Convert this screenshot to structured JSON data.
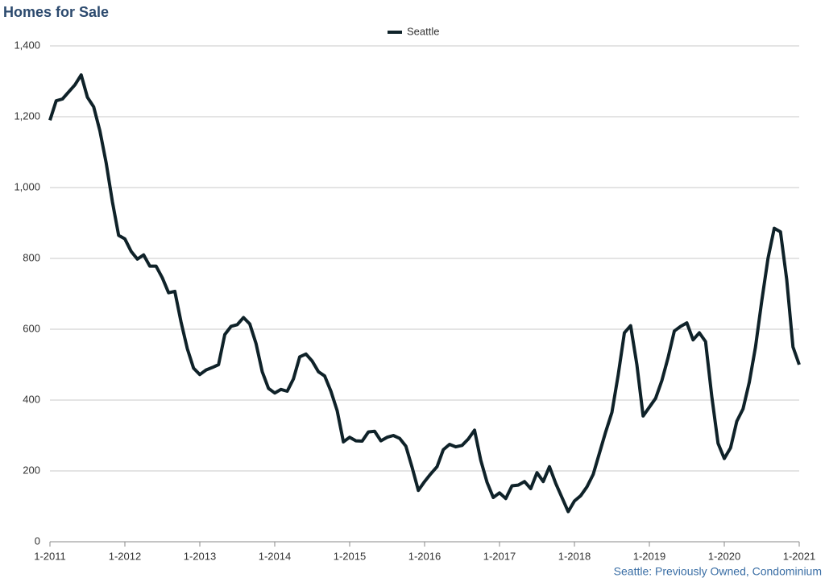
{
  "chart_data": {
    "type": "line",
    "title": "Homes for Sale",
    "footer": "Seattle: Previously Owned, Condominium",
    "categories": [
      "1-2011",
      null,
      null,
      null,
      null,
      null,
      null,
      null,
      null,
      null,
      null,
      null,
      "1-2012",
      null,
      null,
      null,
      null,
      null,
      null,
      null,
      null,
      null,
      null,
      null,
      "1-2013",
      null,
      null,
      null,
      null,
      null,
      null,
      null,
      null,
      null,
      null,
      null,
      "1-2014",
      null,
      null,
      null,
      null,
      null,
      null,
      null,
      null,
      null,
      null,
      null,
      "1-2015",
      null,
      null,
      null,
      null,
      null,
      null,
      null,
      null,
      null,
      null,
      null,
      "1-2016",
      null,
      null,
      null,
      null,
      null,
      null,
      null,
      null,
      null,
      null,
      null,
      "1-2017",
      null,
      null,
      null,
      null,
      null,
      null,
      null,
      null,
      null,
      null,
      null,
      "1-2018",
      null,
      null,
      null,
      null,
      null,
      null,
      null,
      null,
      null,
      null,
      null,
      "1-2019",
      null,
      null,
      null,
      null,
      null,
      null,
      null,
      null,
      null,
      null,
      null,
      "1-2020",
      null,
      null,
      null,
      null,
      null,
      null,
      null,
      null,
      null,
      null,
      null,
      "1-2021"
    ],
    "series": [
      {
        "name": "Seattle",
        "color": "#0f2229",
        "values": [
          1190,
          1245,
          1250,
          1270,
          1290,
          1318,
          1255,
          1228,
          1160,
          1070,
          960,
          865,
          855,
          820,
          798,
          810,
          778,
          778,
          745,
          703,
          707,
          620,
          545,
          490,
          472,
          485,
          492,
          500,
          585,
          608,
          613,
          633,
          615,
          560,
          480,
          433,
          420,
          430,
          425,
          460,
          522,
          530,
          510,
          480,
          468,
          425,
          370,
          282,
          295,
          285,
          284,
          310,
          312,
          285,
          295,
          300,
          292,
          270,
          210,
          145,
          170,
          192,
          212,
          260,
          275,
          268,
          272,
          290,
          315,
          230,
          168,
          125,
          138,
          122,
          158,
          160,
          170,
          150,
          195,
          170,
          212,
          165,
          125,
          85,
          115,
          130,
          155,
          190,
          250,
          310,
          365,
          470,
          590,
          610,
          500,
          355,
          380,
          405,
          455,
          520,
          595,
          608,
          618,
          570,
          590,
          565,
          410,
          278,
          235,
          265,
          340,
          375,
          450,
          550,
          680,
          800,
          885,
          875,
          740,
          550,
          500
        ]
      }
    ],
    "ylim": [
      0,
      1400
    ],
    "yticks": [
      0,
      200,
      400,
      600,
      800,
      {
        "value": 1000,
        "label": "1,000"
      },
      {
        "value": 1200,
        "label": "1,200"
      },
      {
        "value": 1400,
        "label": "1,400"
      }
    ],
    "grid": true
  }
}
